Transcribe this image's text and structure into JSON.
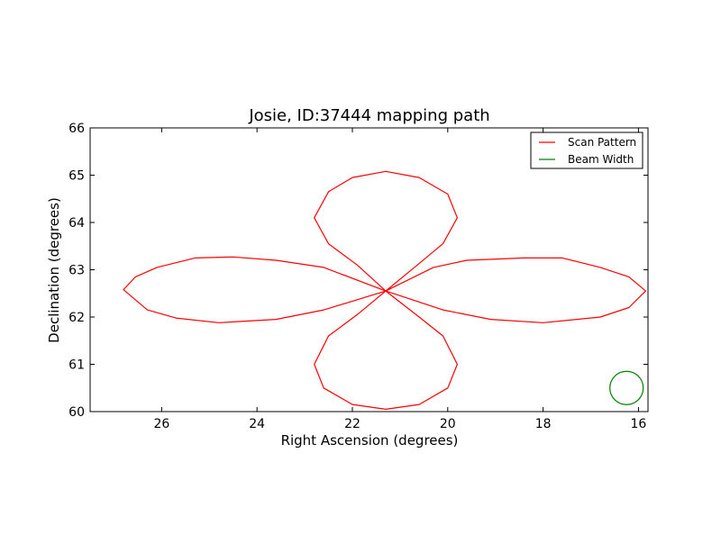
{
  "chart_data": {
    "type": "line",
    "title": "Josie, ID:37444 mapping path",
    "xlabel": "Right Ascension (degrees)",
    "ylabel": "Declination (degrees)",
    "xlim": [
      27.5,
      15.8
    ],
    "ylim": [
      60,
      66
    ],
    "x_inverted": true,
    "x_ticks": [
      26,
      24,
      22,
      20,
      18,
      16
    ],
    "y_ticks": [
      60,
      61,
      62,
      63,
      64,
      65,
      66
    ],
    "grid": false,
    "legend_position": "top-right",
    "series": [
      {
        "name": "Scan Pattern",
        "color": "#ff0000",
        "points": [
          [
            21.3,
            62.55
          ],
          [
            20.3,
            63.05
          ],
          [
            19.6,
            63.2
          ],
          [
            18.4,
            63.25
          ],
          [
            17.6,
            63.25
          ],
          [
            16.8,
            63.05
          ],
          [
            16.2,
            62.85
          ],
          [
            15.85,
            62.55
          ],
          [
            16.2,
            62.2
          ],
          [
            16.8,
            62.0
          ],
          [
            18.0,
            61.88
          ],
          [
            19.1,
            61.95
          ],
          [
            20.1,
            62.15
          ],
          [
            21.3,
            62.55
          ],
          [
            20.6,
            62.0
          ],
          [
            20.1,
            61.6
          ],
          [
            19.8,
            61.0
          ],
          [
            20.0,
            60.5
          ],
          [
            20.6,
            60.15
          ],
          [
            21.3,
            60.05
          ],
          [
            22.0,
            60.15
          ],
          [
            22.6,
            60.5
          ],
          [
            22.8,
            61.0
          ],
          [
            22.5,
            61.6
          ],
          [
            21.9,
            62.05
          ],
          [
            21.3,
            62.55
          ],
          [
            22.6,
            62.15
          ],
          [
            23.6,
            61.95
          ],
          [
            24.8,
            61.88
          ],
          [
            25.7,
            61.98
          ],
          [
            26.3,
            62.15
          ],
          [
            26.65,
            62.45
          ],
          [
            26.8,
            62.58
          ],
          [
            26.55,
            62.85
          ],
          [
            26.1,
            63.05
          ],
          [
            25.3,
            63.25
          ],
          [
            24.5,
            63.27
          ],
          [
            23.6,
            63.2
          ],
          [
            22.6,
            63.05
          ],
          [
            21.3,
            62.55
          ],
          [
            21.9,
            63.1
          ],
          [
            22.5,
            63.55
          ],
          [
            22.8,
            64.1
          ],
          [
            22.5,
            64.65
          ],
          [
            22.0,
            64.95
          ],
          [
            21.3,
            65.08
          ],
          [
            20.6,
            64.95
          ],
          [
            20.0,
            64.6
          ],
          [
            19.8,
            64.1
          ],
          [
            20.1,
            63.55
          ],
          [
            20.7,
            63.05
          ],
          [
            21.3,
            62.55
          ]
        ]
      },
      {
        "name": "Beam Width",
        "color": "#008000",
        "center": [
          16.25,
          60.5
        ],
        "radius_deg": 0.35
      }
    ]
  }
}
